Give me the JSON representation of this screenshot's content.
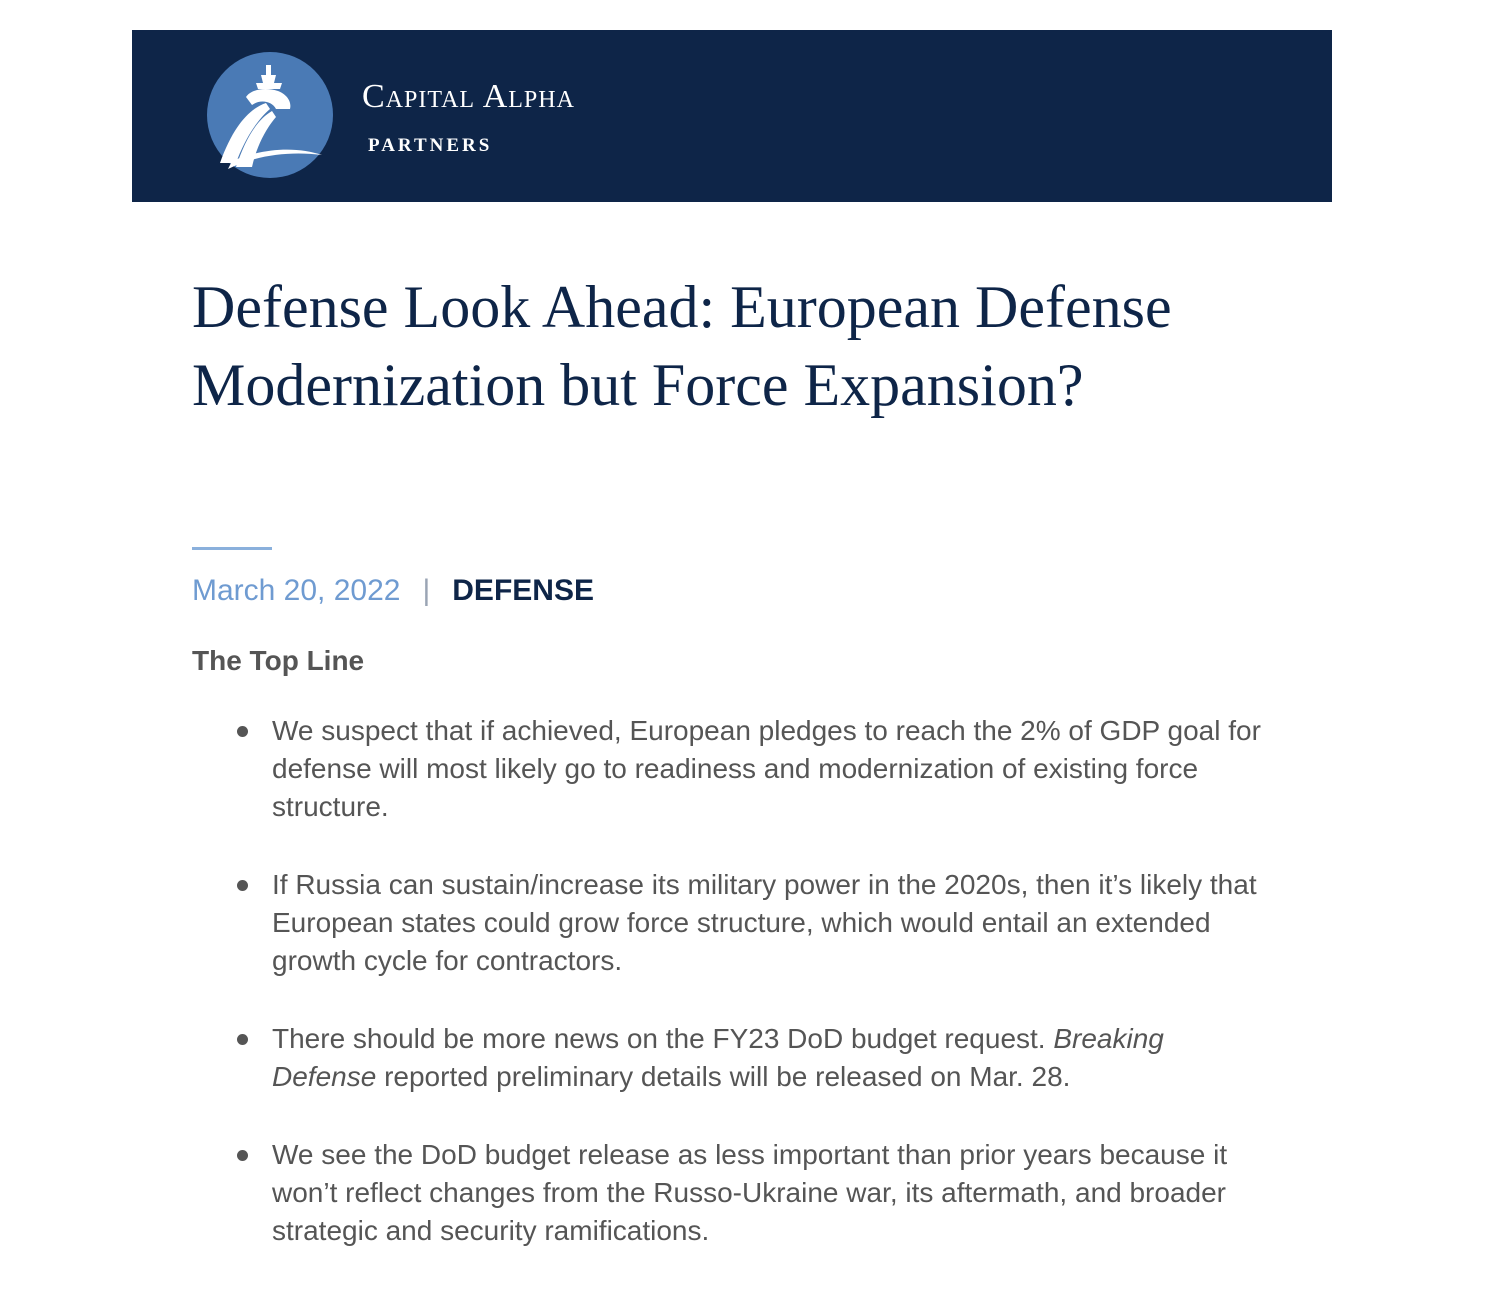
{
  "header": {
    "brand_name": "Capital Alpha",
    "brand_sub": "PARTNERS",
    "logo_icon": "capitol-dome-icon",
    "background_color": "#0e2548",
    "emblem_color": "#4a7ab5"
  },
  "article": {
    "title": "Defense Look Ahead: European Defense Modernization but Force Expansion?",
    "date": "March 20, 2022",
    "separator": "|",
    "category": "DEFENSE",
    "section_heading": "The Top Line",
    "bullets": [
      {
        "text": "We suspect that if achieved, European pledges to reach the 2% of GDP goal for defense will most likely go to readiness and modernization of existing force structure."
      },
      {
        "text": "If Russia can sustain/increase its military power in the 2020s, then it’s likely that European states could grow force structure, which would entail an extended growth cycle for contractors."
      },
      {
        "text_before": "There should be more news on the FY23 DoD budget request. ",
        "source": "Breaking Defense",
        "text_after": " reported preliminary details will be released on Mar. 28."
      },
      {
        "text": "We see the DoD budget release as less important than prior years because it won’t reflect changes from the Russo-Ukraine war, its aftermath, and broader strategic and security ramifications."
      }
    ]
  }
}
